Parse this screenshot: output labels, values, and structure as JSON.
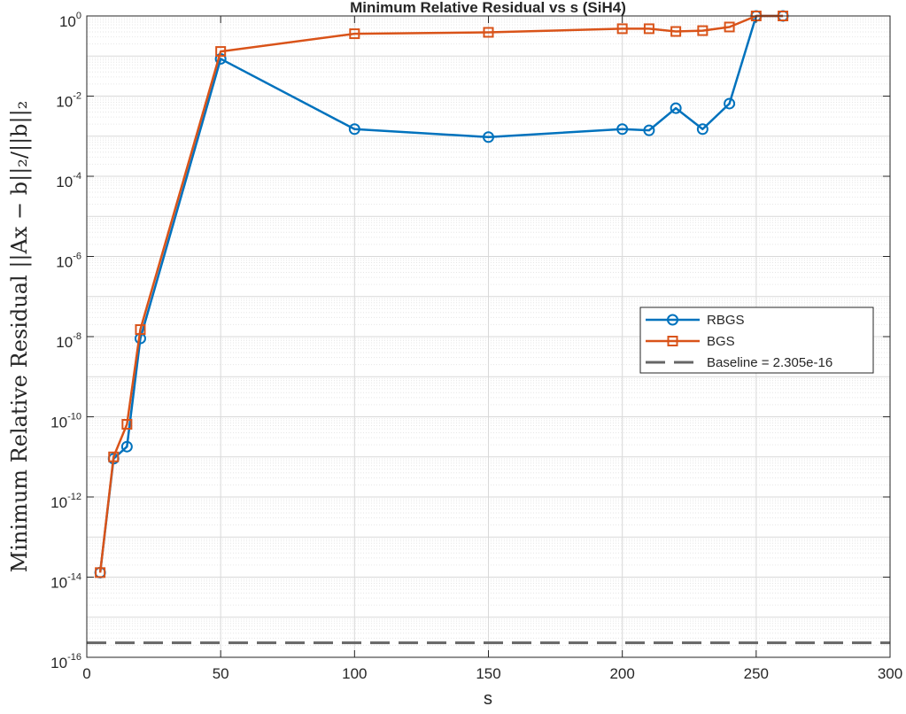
{
  "chart_data": {
    "type": "line",
    "title": "Minimum Relative Residual vs s (SiH4)",
    "xlabel": "s",
    "ylabel": "Minimum Relative Residual ||Ax − b||₂/||b||₂",
    "xlim": [
      0,
      300
    ],
    "ylim": [
      1e-16,
      1
    ],
    "yscale": "log",
    "grid": true,
    "minor_grid": true,
    "legend_position": "right",
    "x_ticks": [
      "0",
      "50",
      "100",
      "150",
      "200",
      "250",
      "300"
    ],
    "y_ticks": [
      {
        "base": "10",
        "exp": "0"
      },
      {
        "base": "10",
        "exp": "-2"
      },
      {
        "base": "10",
        "exp": "-4"
      },
      {
        "base": "10",
        "exp": "-6"
      },
      {
        "base": "10",
        "exp": "-8"
      },
      {
        "base": "10",
        "exp": "-10"
      },
      {
        "base": "10",
        "exp": "-12"
      },
      {
        "base": "10",
        "exp": "-14"
      },
      {
        "base": "10",
        "exp": "-16"
      }
    ],
    "series": [
      {
        "name": "RBGS",
        "color": "#0072BD",
        "marker": "circle",
        "x": [
          5,
          10,
          15,
          20,
          50,
          100,
          150,
          200,
          210,
          220,
          230,
          240,
          250,
          260
        ],
        "y": [
          1.3e-14,
          9e-12,
          1.8e-11,
          9e-09,
          0.085,
          0.0015,
          0.00095,
          0.0015,
          0.0014,
          0.005,
          0.0015,
          0.0065,
          1.0,
          1.0
        ]
      },
      {
        "name": "BGS",
        "color": "#D95319",
        "marker": "square",
        "x": [
          5,
          10,
          15,
          20,
          50,
          100,
          150,
          200,
          210,
          220,
          230,
          240,
          250,
          260
        ],
        "y": [
          1.3e-14,
          1e-11,
          6.5e-11,
          1.5e-08,
          0.13,
          0.36,
          0.39,
          0.48,
          0.48,
          0.41,
          0.43,
          0.53,
          1.0,
          1.0
        ]
      },
      {
        "name": "Baseline = 2.305e-16",
        "color": "#666666",
        "style": "dashed",
        "x": [
          0,
          300
        ],
        "y": [
          2.305e-16,
          2.305e-16
        ]
      }
    ]
  }
}
